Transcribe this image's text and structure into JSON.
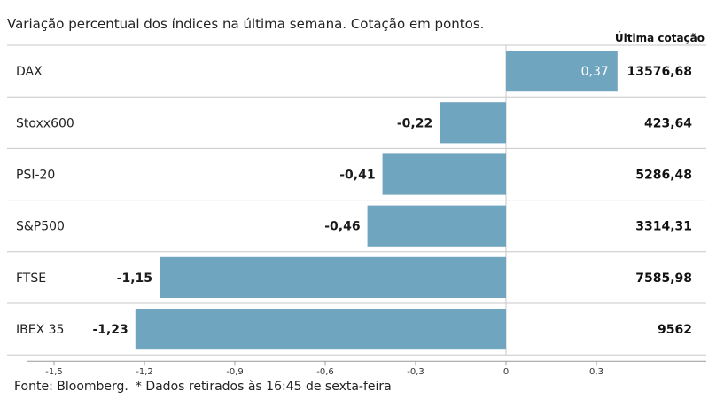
{
  "subtitle": "Variação percentual dos índices na última semana. Cotação em pontos.",
  "column_header": "Última cotação",
  "footer": {
    "source": "Fonte: Bloomberg.",
    "note": "* Dados retirados às 16:45 de sexta-feira"
  },
  "colors": {
    "bar": "#6fa5bf",
    "grid": "#c8c8c8",
    "axis": "#999999"
  },
  "chart_data": {
    "type": "bar",
    "orientation": "horizontal",
    "categories": [
      "DAX",
      "Stoxx600",
      "PSI-20",
      "S&P500",
      "FTSE",
      "IBEX 35"
    ],
    "values": [
      0.37,
      -0.22,
      -0.41,
      -0.46,
      -1.15,
      -1.23
    ],
    "value_labels": [
      "0,37",
      "-0,22",
      "-0,41",
      "-0,46",
      "-1,15",
      "-1,23"
    ],
    "last_quote": [
      "13576,68",
      "423,64",
      "5286,48",
      "3314,31",
      "7585,98",
      "9562"
    ],
    "xlim": [
      -1.5,
      0.45
    ],
    "xticks": [
      -1.5,
      -1.2,
      -0.9,
      -0.6,
      -0.3,
      0,
      0.3
    ],
    "xtick_labels": [
      "-1,5",
      "-1,2",
      "-0,9",
      "-0,6",
      "-0,3",
      "0",
      "0,3"
    ],
    "grid": true
  }
}
